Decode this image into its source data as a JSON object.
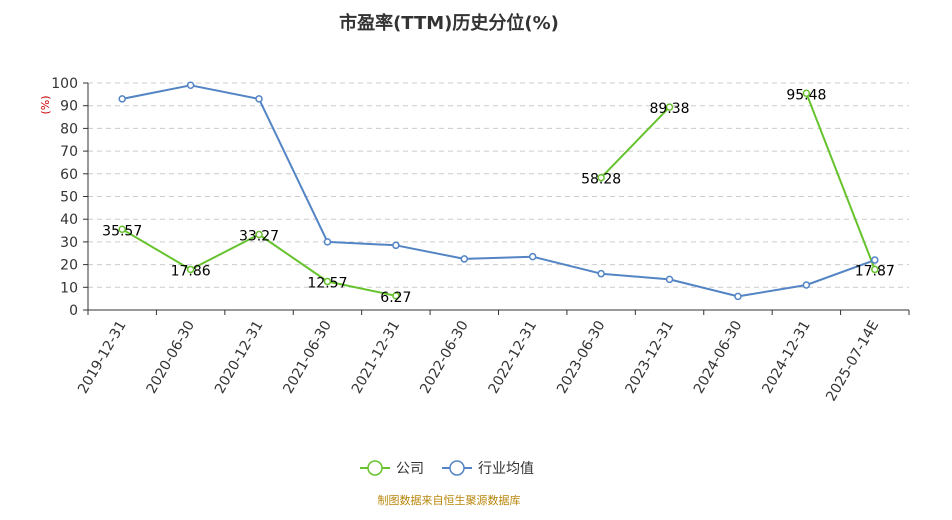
{
  "chart_data": {
    "type": "line",
    "title": "市盈率(TTM)历史分位(%)",
    "ylabel": "(%)",
    "xlabel": "",
    "ylim": [
      0,
      100
    ],
    "yticks": [
      0,
      10,
      20,
      30,
      40,
      50,
      60,
      70,
      80,
      90,
      100
    ],
    "categories": [
      "2019-12-31",
      "2020-06-30",
      "2020-12-31",
      "2021-06-30",
      "2021-12-31",
      "2022-06-30",
      "2022-12-31",
      "2023-06-30",
      "2023-12-31",
      "2024-06-30",
      "2024-12-31",
      "2025-07-14E"
    ],
    "grid": true,
    "legend_position": "bottom",
    "series": [
      {
        "name": "公司",
        "color": "#66c32d",
        "values": [
          35.57,
          17.86,
          33.27,
          12.57,
          6.27,
          null,
          null,
          58.28,
          89.38,
          null,
          95.48,
          17.87
        ],
        "labels": [
          "35.57",
          "17.86",
          "33.27",
          "12.57",
          "6.27",
          "",
          "",
          "58.28",
          "89.38",
          "",
          "95.48",
          "17.87"
        ]
      },
      {
        "name": "行业均值",
        "color": "#5384c4",
        "values": [
          93,
          99,
          93,
          30,
          28.5,
          22.5,
          23.5,
          16,
          13.5,
          6,
          11,
          22
        ],
        "labels": []
      }
    ],
    "source": "制图数据来自恒生聚源数据库"
  }
}
